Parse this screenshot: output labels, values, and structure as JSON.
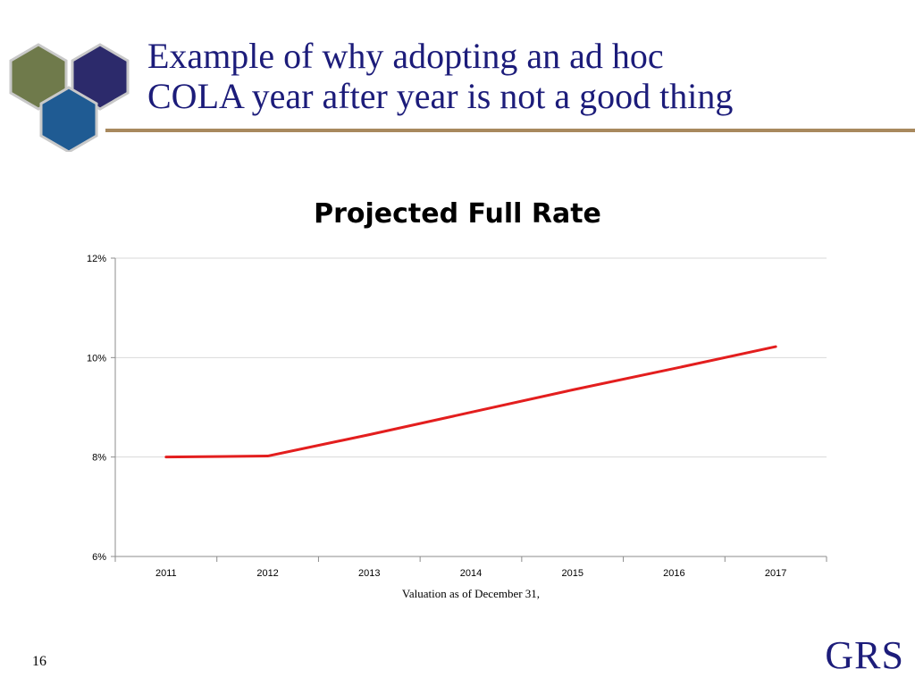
{
  "slide": {
    "title_line1": "Example of why adopting an ad hoc",
    "title_line2": "COLA year after year is not a good thing",
    "page_number": "16",
    "brand": "GRS"
  },
  "colors": {
    "title": "#1c1c7a",
    "rule": "#a8895e",
    "series": "#e31e1e",
    "hex_olive": "#6f7a4b",
    "hex_navy": "#2c2a6b",
    "hex_blue": "#1f5b93"
  },
  "chart_data": {
    "type": "line",
    "title": "Projected Full Rate",
    "xlabel": "Valuation as of December 31,",
    "ylabel": "",
    "x": [
      "2011",
      "2012",
      "2013",
      "2014",
      "2015",
      "2016",
      "2017"
    ],
    "series": [
      {
        "values": [
          8.0,
          8.02,
          8.45,
          8.9,
          9.35,
          9.78,
          10.22
        ]
      }
    ],
    "ylim": [
      6,
      12
    ],
    "yticks": [
      6,
      8,
      10,
      12
    ],
    "ytick_labels": [
      "6%",
      "8%",
      "10%",
      "12%"
    ],
    "grid": true,
    "legend": "none"
  }
}
